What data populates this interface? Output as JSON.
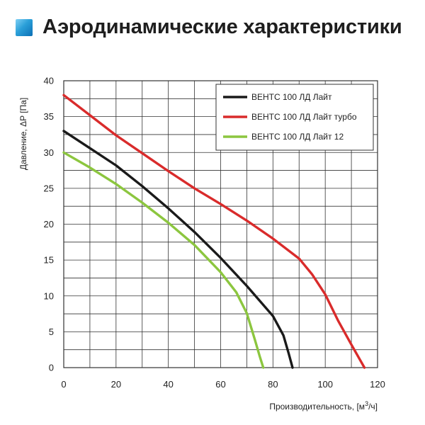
{
  "header": {
    "title": "Аэродинамические характеристики",
    "icon": "square-gradient-icon"
  },
  "chart_data": {
    "type": "line",
    "title": "",
    "xlabel": "Производительность, [м",
    "xlabel_superscript": "3",
    "xlabel_suffix": "/ч]",
    "ylabel": "Давление, ΔP [Па]",
    "xlim": [
      0,
      120
    ],
    "ylim": [
      0,
      40
    ],
    "x_ticks": [
      0,
      20,
      40,
      60,
      80,
      100,
      120
    ],
    "y_ticks": [
      0,
      5,
      10,
      15,
      20,
      25,
      30,
      35,
      40
    ],
    "x_grid_step": 10,
    "y_grid_step": 2.5,
    "grid": true,
    "legend_position": "top-right",
    "series": [
      {
        "name": "ВЕНТС 100 ЛД Лайт",
        "color": "#1a1a1a",
        "points": [
          [
            0,
            33
          ],
          [
            10,
            30.6
          ],
          [
            20,
            28.2
          ],
          [
            30,
            25.3
          ],
          [
            40,
            22.2
          ],
          [
            50,
            18.9
          ],
          [
            60,
            15.3
          ],
          [
            70,
            11.4
          ],
          [
            80,
            7.2
          ],
          [
            84,
            4.5
          ],
          [
            86,
            2
          ],
          [
            87.5,
            0
          ]
        ]
      },
      {
        "name": "ВЕНТС 100 ЛД Лайт турбо",
        "color": "#d92b2b",
        "points": [
          [
            0,
            38
          ],
          [
            10,
            35.2
          ],
          [
            20,
            32.4
          ],
          [
            30,
            29.9
          ],
          [
            40,
            27.4
          ],
          [
            50,
            25
          ],
          [
            60,
            22.8
          ],
          [
            70,
            20.5
          ],
          [
            80,
            18
          ],
          [
            90,
            15.2
          ],
          [
            95,
            13
          ],
          [
            100,
            10.2
          ],
          [
            105,
            6.5
          ],
          [
            110,
            3.2
          ],
          [
            115,
            0
          ]
        ]
      },
      {
        "name": "ВЕНТС 100 ЛД Лайт 12",
        "color": "#8cc63f",
        "points": [
          [
            0,
            30
          ],
          [
            10,
            27.9
          ],
          [
            20,
            25.6
          ],
          [
            30,
            23
          ],
          [
            40,
            20.2
          ],
          [
            50,
            17.1
          ],
          [
            60,
            13.3
          ],
          [
            66,
            10.5
          ],
          [
            70,
            7.6
          ],
          [
            73,
            4
          ],
          [
            75,
            1.5
          ],
          [
            76.3,
            0
          ]
        ]
      }
    ]
  }
}
